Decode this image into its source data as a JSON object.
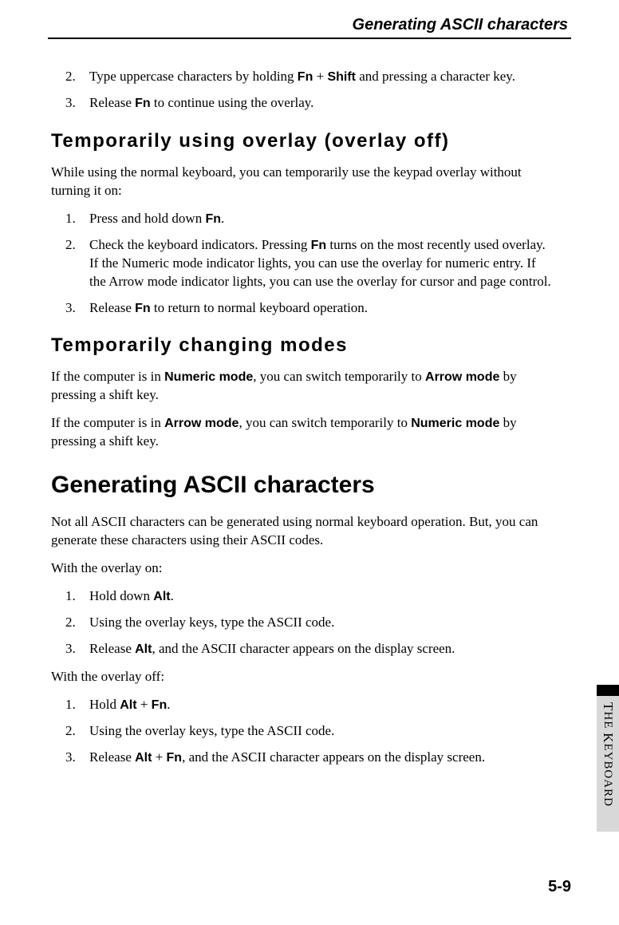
{
  "runningHeader": "Generating ASCII characters",
  "topList": [
    {
      "num": "2.",
      "html": "Type uppercase characters by holding <span class='bold'>Fn</span> + <span class='bold'>Shift</span> and pressing a character key."
    },
    {
      "num": "3.",
      "html": "Release <span class='bold'>Fn</span> to continue using the overlay."
    }
  ],
  "section1": {
    "title": "Temporarily using overlay (overlay off)",
    "intro": "While using the normal keyboard, you can temporarily use the keypad overlay without turning it on:",
    "list": [
      {
        "num": "1.",
        "html": "Press and hold down <span class='bold'>Fn</span>."
      },
      {
        "num": "2.",
        "html": "Check the keyboard indicators. Pressing <span class='bold'>Fn</span> turns on the most recently used overlay. If the Numeric mode indicator lights, you can use the overlay for numeric entry. If the Arrow mode indicator lights, you can use the overlay for cursor and page control."
      },
      {
        "num": "3.",
        "html": "Release <span class='bold'>Fn</span> to return to normal keyboard operation."
      }
    ]
  },
  "section2": {
    "title": "Temporarily changing modes",
    "paras": [
      "If the computer is in <span class='bold'>Numeric mode</span>, you can switch temporarily to <span class='bold'>Arrow mode</span> by pressing a shift key.",
      "If the computer is in <span class='bold'>Arrow mode</span>, you can switch temporarily to <span class='bold'>Numeric mode</span> by pressing a shift key."
    ]
  },
  "section3": {
    "title": "Generating ASCII characters",
    "intro": "Not all ASCII characters can be generated using normal keyboard operation. But, you can generate these characters using their ASCII codes.",
    "sub1Label": "With the overlay on:",
    "list1": [
      {
        "num": "1.",
        "html": "Hold down <span class='bold'>Alt</span>."
      },
      {
        "num": "2.",
        "html": "Using the overlay keys, type the ASCII code."
      },
      {
        "num": "3.",
        "html": "Release <span class='bold'>Alt</span>, and the ASCII character appears on the display screen."
      }
    ],
    "sub2Label": "With the overlay off:",
    "list2": [
      {
        "num": "1.",
        "html": "Hold <span class='bold'>Alt</span> + <span class='bold'>Fn</span>."
      },
      {
        "num": "2.",
        "html": "Using the overlay keys, type the ASCII code."
      },
      {
        "num": "3.",
        "html": "Release <span class='bold'>Alt</span> + <span class='bold'>Fn</span>, and the ASCII character appears on the display screen."
      }
    ]
  },
  "sideTab": {
    "line1": "T",
    "line1b": "HE",
    "line2": "K",
    "line2b": "EYBOARD"
  },
  "pageNumber": "5-9",
  "colors": {
    "background": "#ffffff",
    "text": "#000000",
    "tabGray": "#d8d8d8",
    "tabBlack": "#000000"
  }
}
